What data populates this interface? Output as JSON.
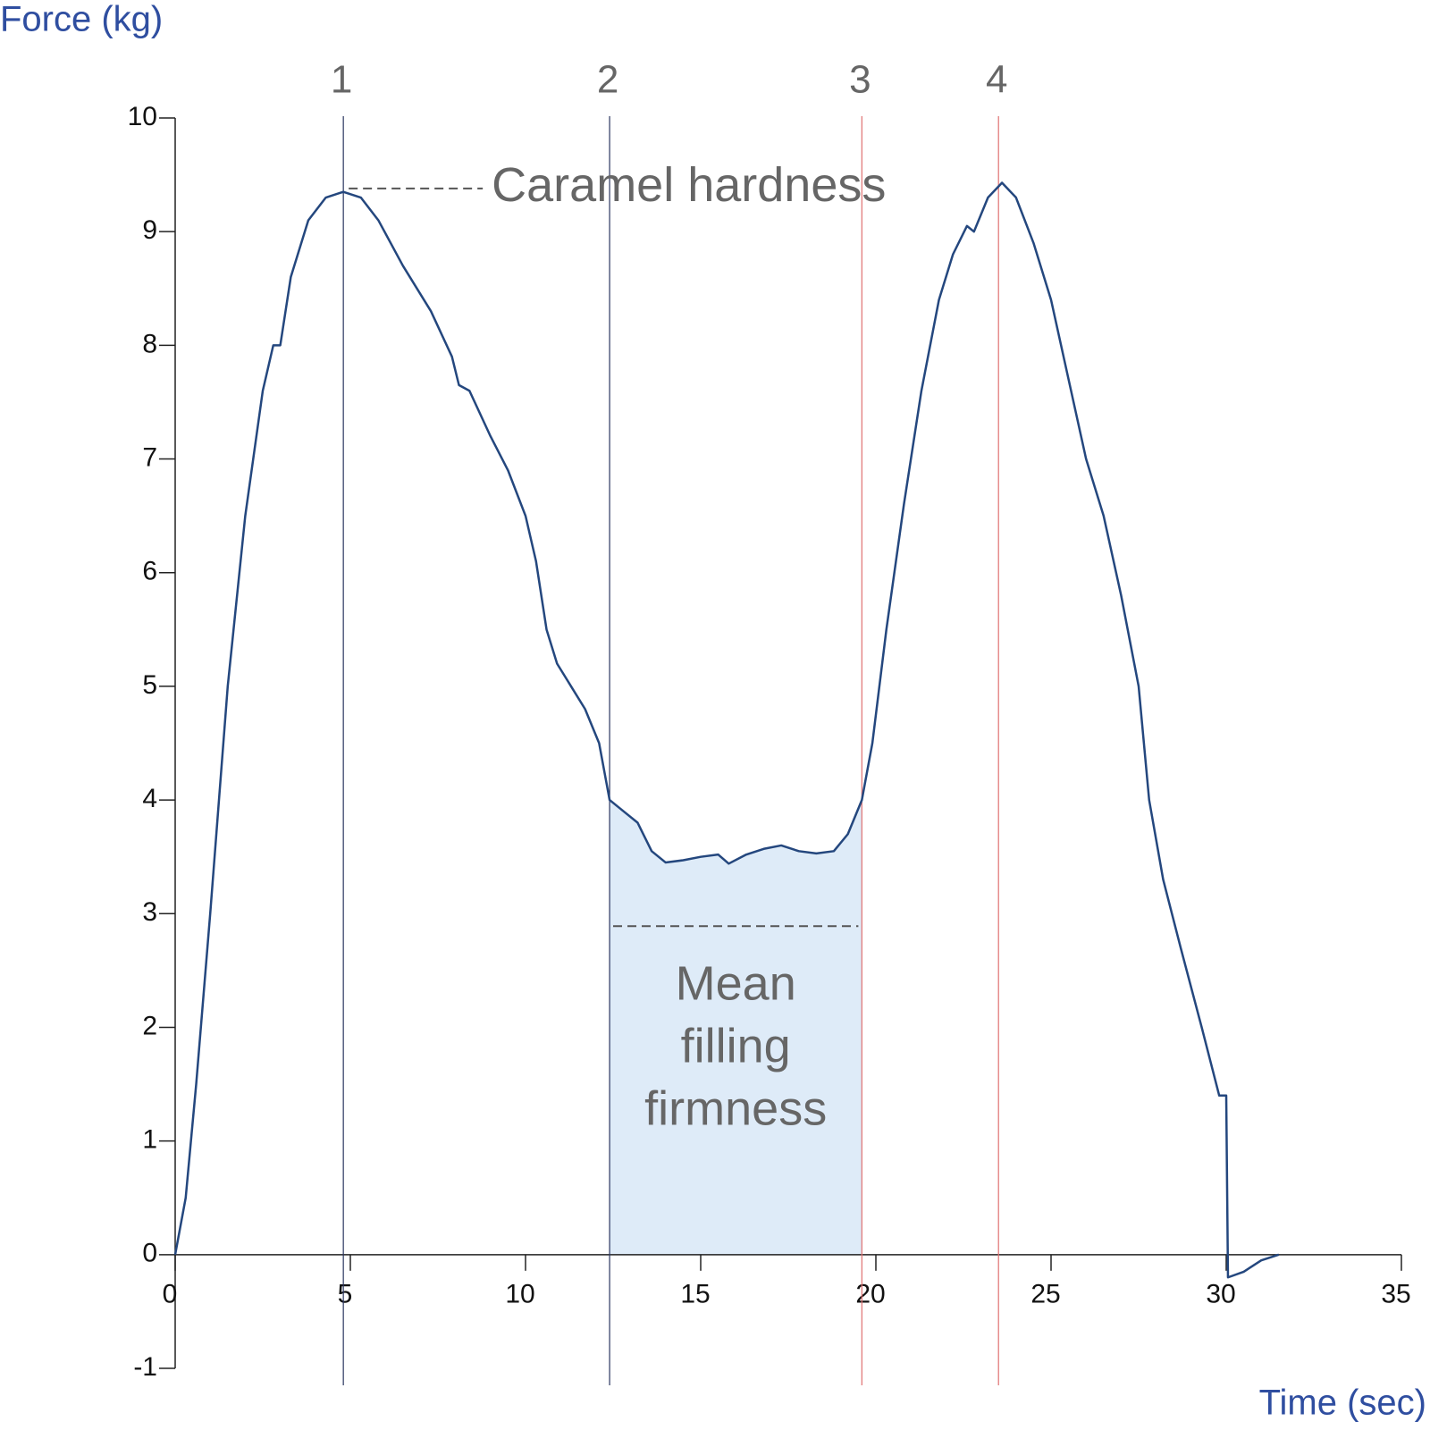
{
  "chart_data": {
    "type": "line",
    "y_label": "Force (kg)",
    "x_label": "Time (sec)",
    "color": "#24477e",
    "x": [
      0,
      0.3,
      0.6,
      1,
      1.5,
      2,
      2.5,
      2.8,
      3,
      3.3,
      3.8,
      4.3,
      4.8,
      5.3,
      5.8,
      6.5,
      7.3,
      7.9,
      8.1,
      8.4,
      9,
      9.5,
      10,
      10.3,
      10.6,
      10.9,
      11.3,
      11.7,
      12.1,
      12.4,
      12.8,
      13.2,
      13.6,
      14,
      14.5,
      15,
      15.5,
      15.8,
      16.3,
      16.8,
      17.3,
      17.8,
      18.3,
      18.8,
      19.2,
      19.6,
      19.9,
      20.3,
      20.8,
      21.3,
      21.8,
      22.2,
      22.6,
      22.8,
      23.2,
      23.6,
      24,
      24.5,
      25,
      25.5,
      26,
      26.5,
      27,
      27.5,
      27.8,
      28.2,
      28.7,
      29.3,
      29.8,
      30,
      30.05,
      30.5,
      31,
      31.5
    ],
    "values": [
      0,
      0.5,
      1.5,
      3,
      5,
      6.5,
      7.6,
      8.0,
      8.0,
      8.6,
      9.1,
      9.3,
      9.35,
      9.3,
      9.1,
      8.7,
      8.3,
      7.9,
      7.65,
      7.6,
      7.2,
      6.9,
      6.5,
      6.1,
      5.5,
      5.2,
      5.0,
      4.8,
      4.5,
      4.0,
      3.9,
      3.8,
      3.55,
      3.45,
      3.47,
      3.5,
      3.52,
      3.44,
      3.52,
      3.57,
      3.6,
      3.55,
      3.53,
      3.55,
      3.7,
      4.0,
      4.5,
      5.5,
      6.6,
      7.6,
      8.4,
      8.8,
      9.05,
      9.0,
      9.3,
      9.43,
      9.3,
      8.9,
      8.4,
      7.7,
      7.0,
      6.5,
      5.8,
      5.0,
      4.0,
      3.3,
      2.7,
      2.0,
      1.4,
      1.4,
      -0.2,
      -0.15,
      -0.05,
      0.0
    ],
    "xlim": [
      0,
      35
    ],
    "ylim": [
      -1,
      10
    ],
    "xticks": [
      0,
      5,
      10,
      15,
      20,
      25,
      30,
      35
    ],
    "yticks": [
      -1,
      0,
      1,
      2,
      3,
      4,
      5,
      6,
      7,
      8,
      9,
      10
    ],
    "markers": [
      {
        "label": "1",
        "x": 4.8,
        "color": "#2a3560"
      },
      {
        "label": "2",
        "x": 12.4,
        "color": "#2a3560"
      },
      {
        "label": "3",
        "x": 19.6,
        "color": "#e07070"
      },
      {
        "label": "4",
        "x": 23.5,
        "color": "#e07070"
      }
    ],
    "shaded_region": {
      "from": 12.4,
      "to": 19.6,
      "color": "#deebf8"
    },
    "annotations": [
      {
        "text": "Caramel hardness",
        "x": 4.8,
        "y": 9.38
      },
      {
        "text_lines": [
          "Mean",
          "filling",
          "firmness"
        ],
        "x": [
          12.5,
          19.5
        ],
        "y": 2.89
      }
    ]
  }
}
